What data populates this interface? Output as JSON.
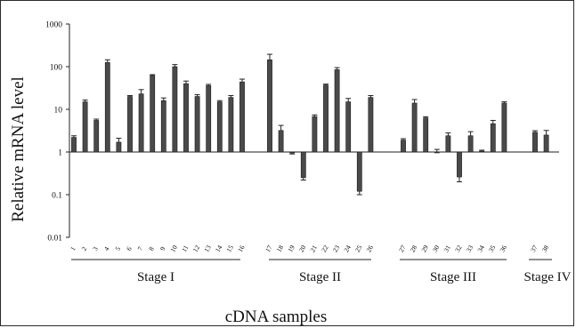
{
  "chart_data": {
    "type": "bar",
    "xlabel": "cDNA samples",
    "ylabel": "Relative mRNA level",
    "yscale": "log",
    "ylim": [
      0.01,
      1000
    ],
    "yticks": [
      "0.01",
      "0.1",
      "1",
      "10",
      "100",
      "1000"
    ],
    "baseline": 1,
    "grid": false,
    "bar_color": "#4a4a4a",
    "categories": [
      "1",
      "2",
      "3",
      "4",
      "5",
      "6",
      "7",
      "8",
      "9",
      "10",
      "11",
      "12",
      "13",
      "14",
      "15",
      "16",
      "17",
      "18",
      "19",
      "20",
      "21",
      "22",
      "23",
      "24",
      "25",
      "26",
      "27",
      "28",
      "29",
      "30",
      "31",
      "32",
      "33",
      "34",
      "35",
      "36",
      "37",
      "38"
    ],
    "values": [
      2.2,
      15,
      5.5,
      125,
      1.7,
      20,
      23,
      62,
      16,
      100,
      40,
      20,
      36,
      15,
      19,
      44,
      145,
      3.2,
      0.95,
      0.25,
      6.8,
      37,
      85,
      15,
      0.12,
      19,
      1.9,
      14,
      6.3,
      1.0,
      2.4,
      0.26,
      2.4,
      1.05,
      4.6,
      14,
      2.9,
      2.5
    ],
    "errors": [
      0.2,
      1.5,
      0.4,
      20,
      0.4,
      1.0,
      6,
      3,
      2.5,
      12,
      6,
      2,
      2.5,
      1,
      2,
      7,
      50,
      1.0,
      0.05,
      0.03,
      0.6,
      2,
      10,
      3,
      0.02,
      2,
      0.15,
      3,
      0.4,
      0.15,
      0.4,
      0.06,
      0.6,
      0.05,
      0.9,
      1,
      0.25,
      0.7
    ],
    "groups": [
      {
        "label": "Stage I",
        "from": 1,
        "to": 16
      },
      {
        "label": "Stage II",
        "from": 17,
        "to": 26
      },
      {
        "label": "Stage III",
        "from": 27,
        "to": 36
      },
      {
        "label": "Stage IV",
        "from": 37,
        "to": 38
      }
    ]
  }
}
